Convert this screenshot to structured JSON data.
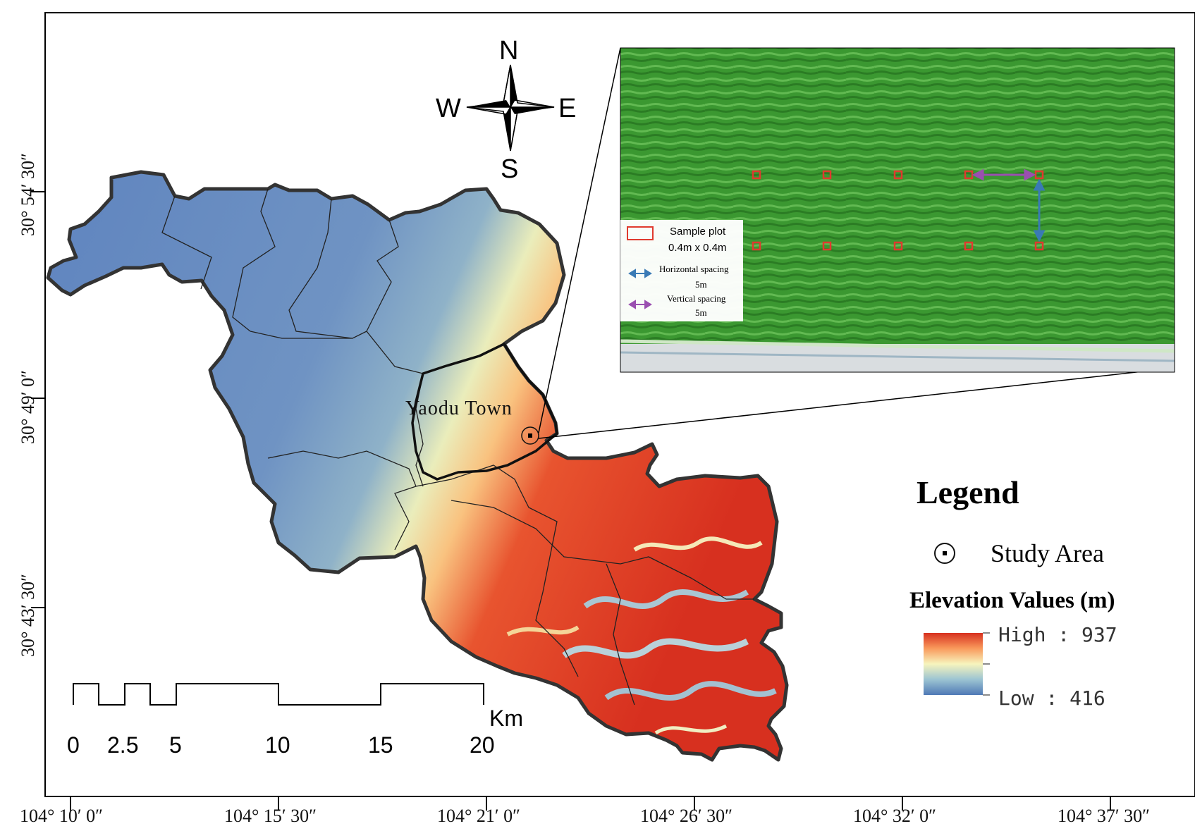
{
  "map": {
    "town_label": "Yaodu Town"
  },
  "compass": {
    "north": "N",
    "south": "S",
    "east": "E",
    "west": "W"
  },
  "scale_bar": {
    "unit": "Km",
    "labels": [
      "0",
      "2.5",
      "5",
      "10",
      "15",
      "20"
    ]
  },
  "axes": {
    "longitude": [
      "104° 10′ 0″",
      "104° 15′ 30″",
      "104° 21′ 0″",
      "104° 26′ 30″",
      "104° 32′ 0″",
      "104° 37′ 30″"
    ],
    "latitude": [
      "30° 54′ 30″",
      "30° 49′ 0″",
      "30° 43′ 30″"
    ]
  },
  "inset": {
    "sample_plot_label": "Sample plot",
    "sample_plot_size": "0.4m x 0.4m",
    "horizontal_label": "Horizontal spacing",
    "horizontal_value": "5m",
    "vertical_label": "Vertical spacing",
    "vertical_value": "5m",
    "colors": {
      "field": "#3f9a34",
      "plot_marker": "#e03a2e",
      "horizontal_arrow": "#3a7ab5",
      "vertical_arrow": "#9a4fb0"
    }
  },
  "legend": {
    "title": "Legend",
    "study_area": "Study Area",
    "elevation_title": "Elevation  Values   (m)",
    "high_label": "High : 937",
    "low_label": "Low : 416",
    "high_value": 937,
    "low_value": 416,
    "colors": {
      "high": "#d7301f",
      "mid": "#f7f4bd",
      "low": "#4f79b6"
    }
  }
}
